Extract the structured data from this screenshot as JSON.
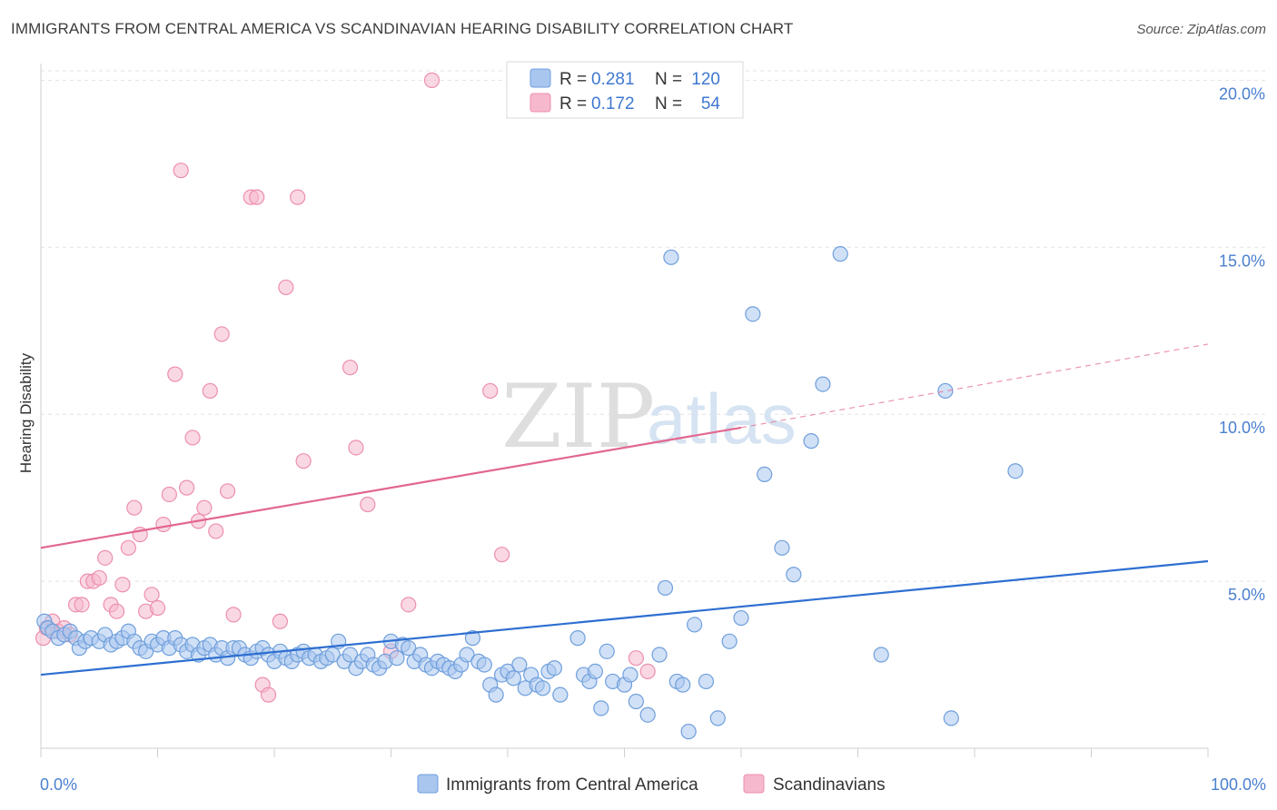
{
  "header": {
    "title": "IMMIGRANTS FROM CENTRAL AMERICA VS SCANDINAVIAN HEARING DISABILITY CORRELATION CHART",
    "source": "Source: ZipAtlas.com"
  },
  "watermark": {
    "zip": "ZIP",
    "atlas": "atlas"
  },
  "legend": {
    "items": [
      {
        "r_label": "R =",
        "r_value": "0.281",
        "n_label": "N =",
        "n_value": "120",
        "color": "#a9c6ef"
      },
      {
        "r_label": "R =",
        "r_value": "0.172",
        "n_label": "N =",
        "n_value": "54",
        "color": "#f6b8cc"
      }
    ]
  },
  "bottom_legend": [
    {
      "label": "Immigrants from Central America",
      "color": "#a9c6ef"
    },
    {
      "label": "Scandinavians",
      "color": "#f6b8cc"
    }
  ],
  "chart_data": {
    "type": "scatter",
    "title": "IMMIGRANTS FROM CENTRAL AMERICA VS SCANDINAVIAN HEARING DISABILITY CORRELATION CHART",
    "xlabel": "",
    "ylabel": "Hearing Disability",
    "xlim": [
      0,
      100
    ],
    "ylim": [
      0,
      20.5
    ],
    "x_tick_labels": [
      "0.0%",
      "100.0%"
    ],
    "y_tick_labels": [
      "5.0%",
      "10.0%",
      "15.0%",
      "20.0%"
    ],
    "y_ticks": [
      5,
      10,
      15,
      20
    ],
    "grid": "horizontal dashed",
    "legend_position": "top-center",
    "series": [
      {
        "name": "Immigrants from Central America",
        "color": "#a9c6ef",
        "stroke": "#6f9fdc",
        "trend": {
          "x0": 0,
          "y0": 2.2,
          "x1": 100,
          "y1": 5.6,
          "color": "#2e6fd1"
        },
        "points": [
          [
            0.3,
            3.8
          ],
          [
            0.6,
            3.6
          ],
          [
            1.0,
            3.5
          ],
          [
            1.5,
            3.3
          ],
          [
            2.0,
            3.4
          ],
          [
            2.5,
            3.5
          ],
          [
            3.0,
            3.3
          ],
          [
            3.3,
            3.0
          ],
          [
            3.8,
            3.2
          ],
          [
            4.3,
            3.3
          ],
          [
            5.0,
            3.2
          ],
          [
            5.5,
            3.4
          ],
          [
            6.0,
            3.1
          ],
          [
            6.5,
            3.2
          ],
          [
            7.0,
            3.3
          ],
          [
            7.5,
            3.5
          ],
          [
            8.0,
            3.2
          ],
          [
            8.5,
            3.0
          ],
          [
            9.0,
            2.9
          ],
          [
            9.5,
            3.2
          ],
          [
            10.0,
            3.1
          ],
          [
            10.5,
            3.3
          ],
          [
            11.0,
            3.0
          ],
          [
            11.5,
            3.3
          ],
          [
            12.0,
            3.1
          ],
          [
            12.5,
            2.9
          ],
          [
            13.0,
            3.1
          ],
          [
            13.5,
            2.8
          ],
          [
            14.0,
            3.0
          ],
          [
            14.5,
            3.1
          ],
          [
            15.0,
            2.8
          ],
          [
            15.5,
            3.0
          ],
          [
            16.0,
            2.7
          ],
          [
            16.5,
            3.0
          ],
          [
            17.0,
            3.0
          ],
          [
            17.5,
            2.8
          ],
          [
            18.0,
            2.7
          ],
          [
            18.5,
            2.9
          ],
          [
            19.0,
            3.0
          ],
          [
            19.5,
            2.8
          ],
          [
            20.0,
            2.6
          ],
          [
            20.5,
            2.9
          ],
          [
            21.0,
            2.7
          ],
          [
            21.5,
            2.6
          ],
          [
            22.0,
            2.8
          ],
          [
            22.5,
            2.9
          ],
          [
            23.0,
            2.7
          ],
          [
            23.5,
            2.8
          ],
          [
            24.0,
            2.6
          ],
          [
            24.5,
            2.7
          ],
          [
            25.0,
            2.8
          ],
          [
            25.5,
            3.2
          ],
          [
            26.0,
            2.6
          ],
          [
            26.5,
            2.8
          ],
          [
            27.0,
            2.4
          ],
          [
            27.5,
            2.6
          ],
          [
            28.0,
            2.8
          ],
          [
            28.5,
            2.5
          ],
          [
            29.0,
            2.4
          ],
          [
            29.5,
            2.6
          ],
          [
            30.0,
            3.2
          ],
          [
            30.5,
            2.7
          ],
          [
            31.0,
            3.1
          ],
          [
            31.5,
            3.0
          ],
          [
            32.0,
            2.6
          ],
          [
            32.5,
            2.8
          ],
          [
            33.0,
            2.5
          ],
          [
            33.5,
            2.4
          ],
          [
            34.0,
            2.6
          ],
          [
            34.5,
            2.5
          ],
          [
            35.0,
            2.4
          ],
          [
            35.5,
            2.3
          ],
          [
            36.0,
            2.5
          ],
          [
            36.5,
            2.8
          ],
          [
            37.0,
            3.3
          ],
          [
            37.5,
            2.6
          ],
          [
            38.0,
            2.5
          ],
          [
            38.5,
            1.9
          ],
          [
            39.0,
            1.6
          ],
          [
            39.5,
            2.2
          ],
          [
            40.0,
            2.3
          ],
          [
            40.5,
            2.1
          ],
          [
            41.0,
            2.5
          ],
          [
            41.5,
            1.8
          ],
          [
            42.0,
            2.2
          ],
          [
            42.5,
            1.9
          ],
          [
            43.0,
            1.8
          ],
          [
            43.5,
            2.3
          ],
          [
            44.0,
            2.4
          ],
          [
            44.5,
            1.6
          ],
          [
            46.0,
            3.3
          ],
          [
            46.5,
            2.2
          ],
          [
            47.0,
            2.0
          ],
          [
            47.5,
            2.3
          ],
          [
            48.0,
            1.2
          ],
          [
            48.5,
            2.9
          ],
          [
            49.0,
            2.0
          ],
          [
            50.0,
            1.9
          ],
          [
            50.5,
            2.2
          ],
          [
            51.0,
            1.4
          ],
          [
            52.0,
            1.0
          ],
          [
            53.0,
            2.8
          ],
          [
            53.5,
            4.8
          ],
          [
            54.0,
            14.7
          ],
          [
            54.5,
            2.0
          ],
          [
            55.0,
            1.9
          ],
          [
            55.5,
            0.5
          ],
          [
            56.0,
            3.7
          ],
          [
            57.0,
            2.0
          ],
          [
            58.0,
            0.9
          ],
          [
            59.0,
            3.2
          ],
          [
            60.0,
            3.9
          ],
          [
            61.0,
            13.0
          ],
          [
            62.0,
            8.2
          ],
          [
            63.5,
            6.0
          ],
          [
            64.5,
            5.2
          ],
          [
            66.0,
            9.2
          ],
          [
            67.0,
            10.9
          ],
          [
            68.5,
            14.8
          ],
          [
            72.0,
            2.8
          ],
          [
            77.5,
            10.7
          ],
          [
            78.0,
            0.9
          ],
          [
            83.5,
            8.3
          ]
        ]
      },
      {
        "name": "Scandinavians",
        "color": "#f6b8cc",
        "stroke": "#ec8fae",
        "trend": {
          "x0": 0,
          "y0": 6.0,
          "x1": 60,
          "y1": 9.6,
          "x2": 100,
          "y2": 12.1,
          "color": "#e2668f"
        },
        "points": [
          [
            0.2,
            3.3
          ],
          [
            0.5,
            3.6
          ],
          [
            1.0,
            3.8
          ],
          [
            1.5,
            3.5
          ],
          [
            2.0,
            3.6
          ],
          [
            2.5,
            3.4
          ],
          [
            3.0,
            4.3
          ],
          [
            3.5,
            4.3
          ],
          [
            4.0,
            5.0
          ],
          [
            4.5,
            5.0
          ],
          [
            5.0,
            5.1
          ],
          [
            5.5,
            5.7
          ],
          [
            6.0,
            4.3
          ],
          [
            6.5,
            4.1
          ],
          [
            7.0,
            4.9
          ],
          [
            7.5,
            6.0
          ],
          [
            8.0,
            7.2
          ],
          [
            8.5,
            6.4
          ],
          [
            9.0,
            4.1
          ],
          [
            9.5,
            4.6
          ],
          [
            10.0,
            4.2
          ],
          [
            10.5,
            6.7
          ],
          [
            11.0,
            7.6
          ],
          [
            11.5,
            11.2
          ],
          [
            12.0,
            17.3
          ],
          [
            12.5,
            7.8
          ],
          [
            13.0,
            9.3
          ],
          [
            13.5,
            6.8
          ],
          [
            14.0,
            7.2
          ],
          [
            14.5,
            10.7
          ],
          [
            15.0,
            6.5
          ],
          [
            15.5,
            12.4
          ],
          [
            16.0,
            7.7
          ],
          [
            16.5,
            4.0
          ],
          [
            18.0,
            16.5
          ],
          [
            18.5,
            16.5
          ],
          [
            19.0,
            1.9
          ],
          [
            19.5,
            1.6
          ],
          [
            20.5,
            3.8
          ],
          [
            21.0,
            13.8
          ],
          [
            22.0,
            16.5
          ],
          [
            22.5,
            8.6
          ],
          [
            26.5,
            11.4
          ],
          [
            27.0,
            9.0
          ],
          [
            28.0,
            7.3
          ],
          [
            30.0,
            2.9
          ],
          [
            31.5,
            4.3
          ],
          [
            33.5,
            20.0
          ],
          [
            38.5,
            10.7
          ],
          [
            39.5,
            5.8
          ],
          [
            51.0,
            2.7
          ],
          [
            52.0,
            2.3
          ]
        ]
      }
    ]
  }
}
